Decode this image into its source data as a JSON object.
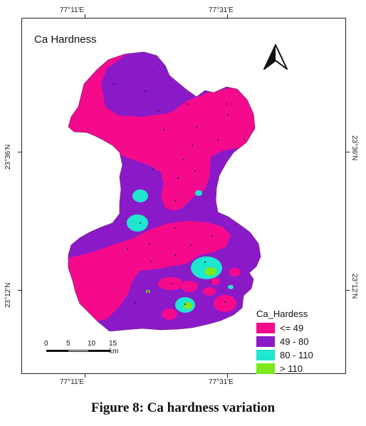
{
  "map": {
    "title": "Ca Hardness",
    "caption": "Figure 8: Ca hardness variation",
    "graticule": {
      "lon_labels": [
        "77°11′E",
        "77°31′E"
      ],
      "lat_labels": [
        "23°36′N",
        "23°12′N"
      ]
    },
    "legend": {
      "title": "Ca_Hardess",
      "items": [
        {
          "label": "<= 49",
          "color": "#f50a8c"
        },
        {
          "label": "49 - 80",
          "color": "#8a1ac8"
        },
        {
          "label": "80 - 110",
          "color": "#1ee6cf"
        },
        {
          "label": "> 110",
          "color": "#7de81b"
        }
      ]
    },
    "scale_bar": {
      "labels": [
        "0",
        "5",
        "10",
        "15 km"
      ]
    },
    "north_arrow": "north-arrow-icon"
  }
}
